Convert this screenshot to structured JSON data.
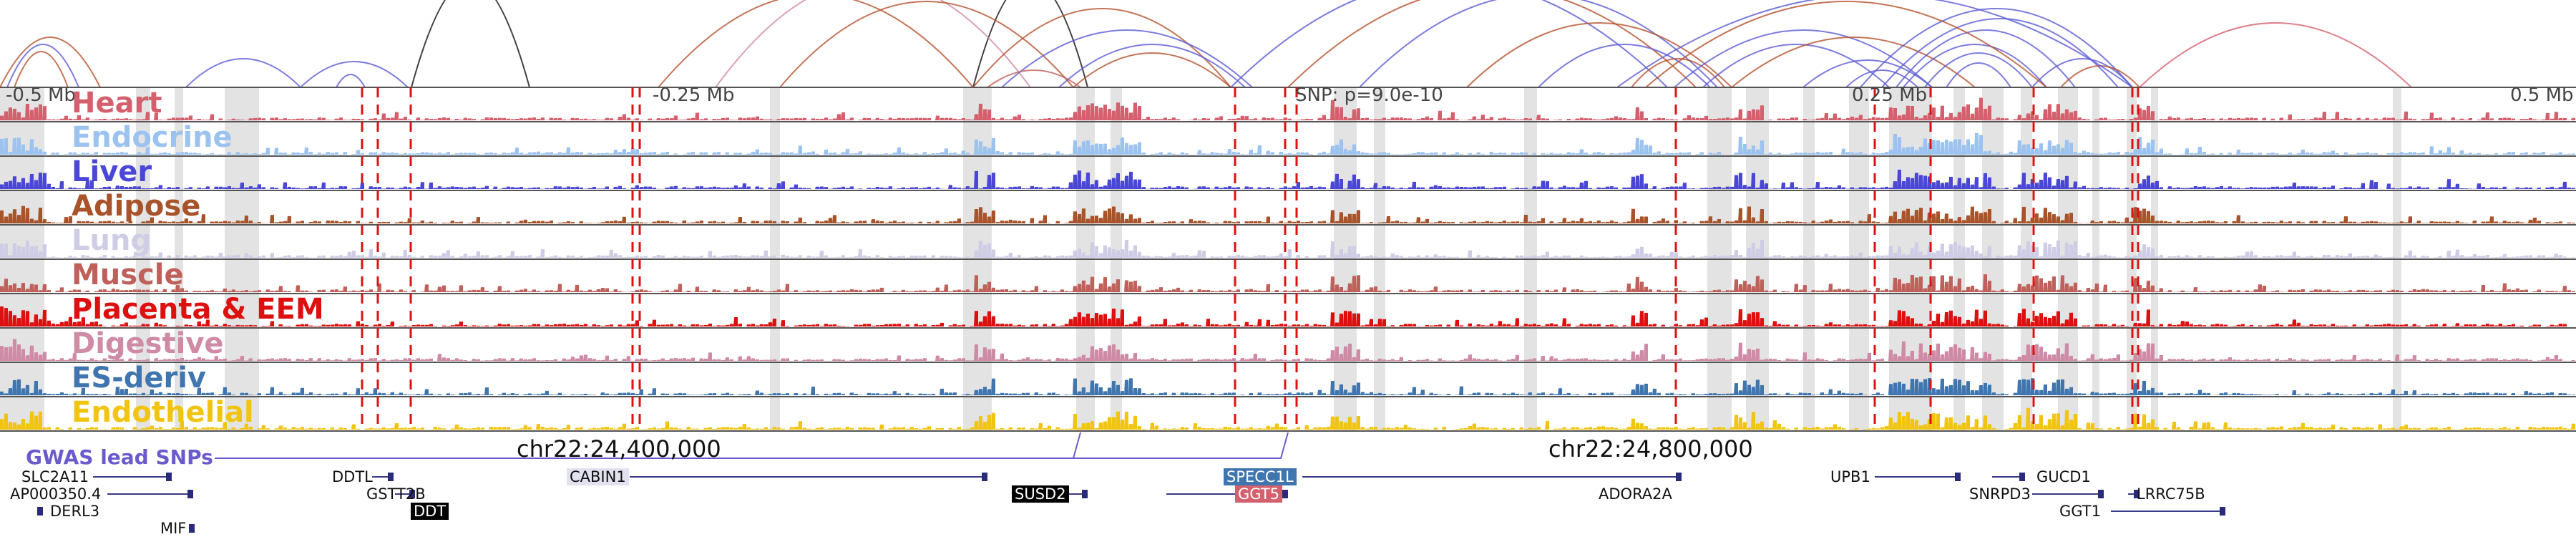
{
  "axis": {
    "mb_labels": [
      "-0.5 Mb",
      "-0.25 Mb",
      "0.25 Mb",
      "0.5 Mb"
    ],
    "snp_label": "SNP: p=9.0e-10",
    "coord_labels": [
      "chr22:24,400,000",
      "chr22:24,800,000"
    ]
  },
  "tracks": [
    {
      "name": "Heart",
      "color": "#d4606e"
    },
    {
      "name": "Endocrine",
      "color": "#9cc3ef"
    },
    {
      "name": "Liver",
      "color": "#4a47d6"
    },
    {
      "name": "Adipose",
      "color": "#a8532a"
    },
    {
      "name": "Lung",
      "color": "#cfcde6"
    },
    {
      "name": "Muscle",
      "color": "#c0605a"
    },
    {
      "name": "Placenta & EEM",
      "color": "#dd0f0f"
    },
    {
      "name": "Digestive",
      "color": "#cf8aa6"
    },
    {
      "name": "ES-deriv",
      "color": "#3f76b0"
    },
    {
      "name": "Endothelial",
      "color": "#f1c40f"
    }
  ],
  "gwas": {
    "label": "GWAS lead SNPs",
    "color": "#6a5acd"
  },
  "genes": [
    {
      "name": "SLC2A11"
    },
    {
      "name": "AP000350.4"
    },
    {
      "name": "DERL3"
    },
    {
      "name": "MIF"
    },
    {
      "name": "DDTL"
    },
    {
      "name": "GSTT2B"
    },
    {
      "name": "DDT"
    },
    {
      "name": "CABIN1"
    },
    {
      "name": "SUSD2"
    },
    {
      "name": "SPECC1L"
    },
    {
      "name": "GGT5"
    },
    {
      "name": "ADORA2A"
    },
    {
      "name": "UPB1"
    },
    {
      "name": "GUCD1"
    },
    {
      "name": "SNRPD3"
    },
    {
      "name": "LRRC75B"
    },
    {
      "name": "GGT1"
    }
  ]
}
